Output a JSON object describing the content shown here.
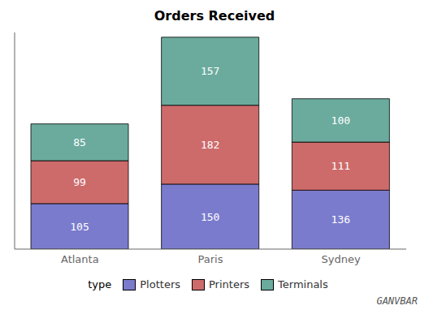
{
  "chart_data": {
    "type": "bar",
    "title": "Orders Received",
    "categories": [
      "Atlanta",
      "Paris",
      "Sydney"
    ],
    "series": [
      {
        "name": "Plotters",
        "color": "#7b7bcd",
        "values": [
          105,
          150,
          136
        ]
      },
      {
        "name": "Printers",
        "color": "#cd6b6b",
        "values": [
          99,
          182,
          111
        ]
      },
      {
        "name": "Terminals",
        "color": "#6bab9e",
        "values": [
          85,
          157,
          100
        ]
      }
    ],
    "stacked": true,
    "ylim": [
      0,
      500
    ],
    "grid": false,
    "legend": "bottom",
    "legend_title": "type",
    "data_labels": true,
    "tick_labels": "x",
    "annotations": [
      "GANVBAR"
    ]
  }
}
